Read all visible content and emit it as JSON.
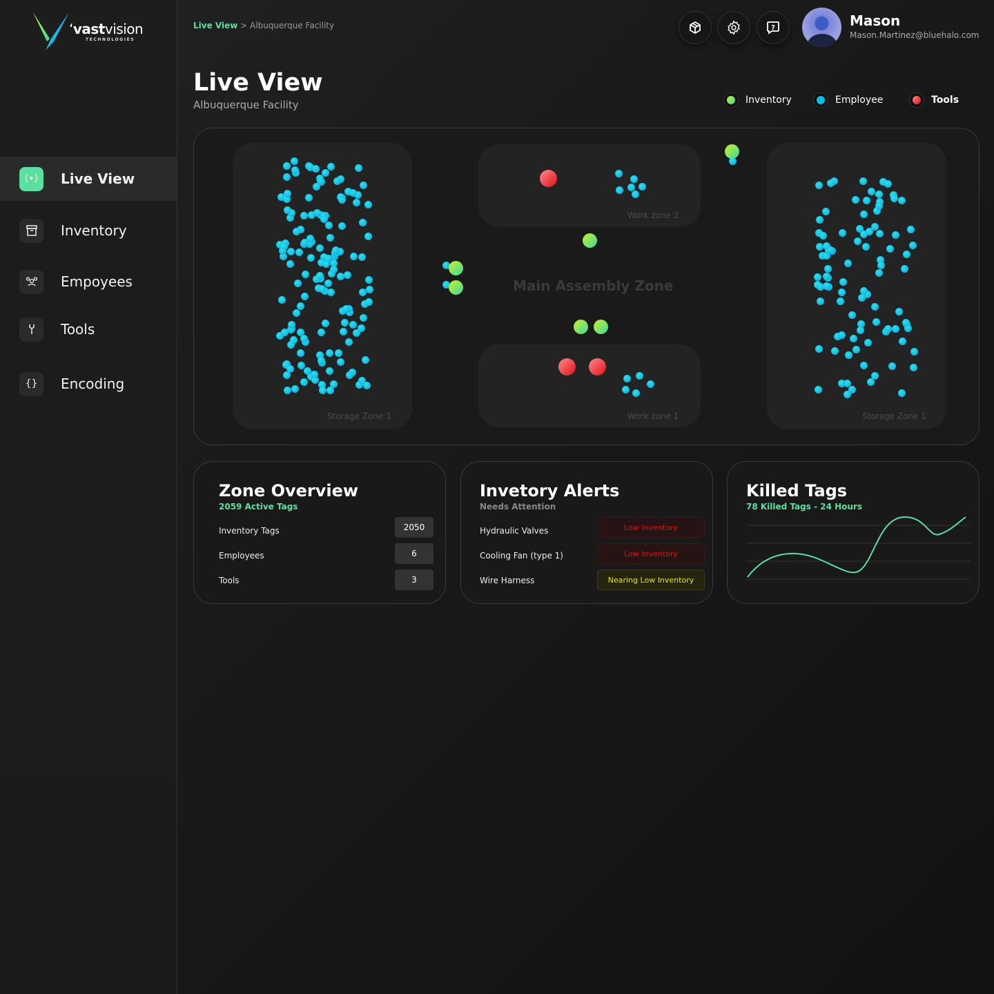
{
  "brand": {
    "name_bold": "vast",
    "name_light": "vision",
    "tagline": "TECHNOLOGIES"
  },
  "sidebar": {
    "items": [
      {
        "label": "Live View",
        "icon": "broadcast-icon",
        "active": true
      },
      {
        "label": "Inventory",
        "icon": "archive-box-icon"
      },
      {
        "label": "Empoyees",
        "icon": "users-icon"
      },
      {
        "label": "Tools",
        "icon": "wrench-icon"
      },
      {
        "label": "Encoding",
        "icon": "braces-icon"
      }
    ]
  },
  "breadcrumb": {
    "current": "Live View",
    "separator": ">",
    "page": "Albuquerque Facility"
  },
  "header": {
    "buttons": [
      "package-icon",
      "gear-icon",
      "help-chat-icon"
    ],
    "user": {
      "name": "Mason",
      "email": "Mason.Martinez@bluehalo.com"
    }
  },
  "page": {
    "title": "Live View",
    "subtitle": "Albuquerque Facility"
  },
  "legend": [
    {
      "label": "Inventory",
      "color": "#8ee05a"
    },
    {
      "label": "Employee",
      "color": "#00c0e6"
    },
    {
      "label": "Tools",
      "color": "#f0303a"
    }
  ],
  "map": {
    "main_zone": "Main Assembly Zone",
    "zones": {
      "storage_left": "Storage Zone 1",
      "work2": "Work zone 2",
      "work1": "Work zone 1",
      "storage_right": "Storage Zone 1"
    }
  },
  "zone_overview": {
    "title": "Zone Overview",
    "subtitle": "2059 Active Tags",
    "rows": [
      {
        "label": "Inventory Tags",
        "value": "2050"
      },
      {
        "label": "Employees",
        "value": "6"
      },
      {
        "label": "Tools",
        "value": "3"
      }
    ]
  },
  "alerts": {
    "title": "Invetory Alerts",
    "subtitle": "Needs Attention",
    "rows": [
      {
        "label": "Hydraulic Valves",
        "status": "Low Inventory"
      },
      {
        "label": "Cooling Fan (type 1)",
        "status": "Low Inventory"
      },
      {
        "label": "Wire Harness",
        "status": "Nearing Low Inventory"
      }
    ]
  },
  "killed": {
    "title": "Killed Tags",
    "subtitle": "78 Killed Tags - 24 Hours",
    "line_color": "#5ce0a0"
  },
  "colors": {
    "accent": "#5ce0a0",
    "danger": "#e01010",
    "warning": "#e6e600"
  }
}
